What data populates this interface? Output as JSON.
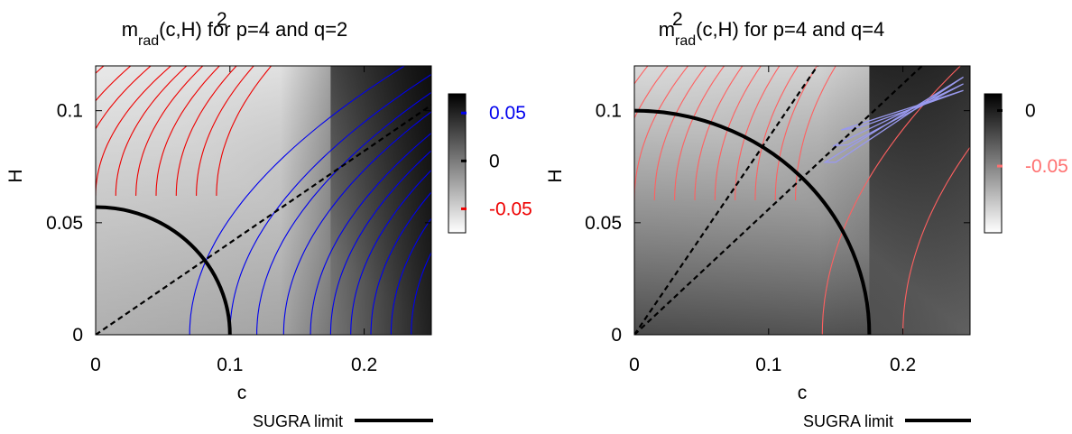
{
  "figure": {
    "legend_label": "SUGRA limit"
  },
  "chart_data": [
    {
      "type": "heatmap",
      "title": {
        "base": "m",
        "superscript": "2",
        "subscript": "rad",
        "rest": "(c,H) for p=4 and q=2"
      },
      "xlabel": "c",
      "ylabel": "H",
      "xlim": [
        0,
        0.25
      ],
      "ylim": [
        0,
        0.12
      ],
      "xticks": [
        {
          "v": 0,
          "label": "0"
        },
        {
          "v": 0.1,
          "label": "0.1"
        },
        {
          "v": 0.2,
          "label": "0.2"
        }
      ],
      "yticks": [
        {
          "v": 0,
          "label": "0"
        },
        {
          "v": 0.05,
          "label": "0.05"
        },
        {
          "v": 0.1,
          "label": "0.1"
        }
      ],
      "colorbar": {
        "range": [
          -0.075,
          0.07
        ],
        "ticks": [
          {
            "v": 0.05,
            "label": "0.05",
            "color": "#0000ee"
          },
          {
            "v": 0,
            "label": "0",
            "color": "#000000"
          },
          {
            "v": -0.05,
            "label": "-0.05",
            "color": "#ee0000"
          }
        ]
      },
      "background": {
        "corner_low_left": "#b0b0b0",
        "corner_high_left": "#f6f6f6",
        "corner_low_right": "#000000",
        "corner_high_right": "#444444"
      },
      "positive_contour_color": "#0000ee",
      "negative_contour_color": "#ee0000",
      "contours": {
        "negative_apex_c": [
          0.09,
          0.075,
          0.06,
          0.045,
          0.03,
          0.015,
          0.0,
          -0.015,
          -0.03,
          -0.05,
          -0.07,
          -0.09,
          -0.11,
          -0.13,
          -0.16,
          -0.19,
          -0.22,
          -0.26,
          -0.3,
          -0.35
        ],
        "positive_apex_c": [
          0.07,
          0.1,
          0.12,
          0.14,
          0.16,
          0.175,
          0.19,
          0.205,
          0.22,
          0.235,
          0.25
        ]
      },
      "zero_lines": [
        {
          "slope": 0.41
        }
      ],
      "sugra_limit": {
        "radius_c": 0.1,
        "radius_H": 0.057
      }
    },
    {
      "type": "heatmap",
      "title": {
        "base": "m",
        "superscript": "2",
        "subscript": "rad",
        "rest": "(c,H) for p=4 and q=4"
      },
      "xlabel": "c",
      "ylabel": "H",
      "xlim": [
        0,
        0.25
      ],
      "ylim": [
        0,
        0.12
      ],
      "xticks": [
        {
          "v": 0,
          "label": "0"
        },
        {
          "v": 0.1,
          "label": "0.1"
        },
        {
          "v": 0.2,
          "label": "0.2"
        }
      ],
      "yticks": [
        {
          "v": 0,
          "label": "0"
        },
        {
          "v": 0.05,
          "label": "0.05"
        },
        {
          "v": 0.1,
          "label": "0.1"
        }
      ],
      "colorbar": {
        "range": [
          -0.11,
          0.015
        ],
        "ticks": [
          {
            "v": 0,
            "label": "0",
            "color": "#000000"
          },
          {
            "v": -0.05,
            "label": "-0.05",
            "color": "#ff7070"
          }
        ]
      },
      "background": {
        "corner_low_left": "#4a4a4a",
        "corner_high_left": "#f0f0f0",
        "corner_low_right": "#707070",
        "corner_high_right": "#101010"
      },
      "positive_contour_color": "#9999ee",
      "negative_contour_color": "#ff6060",
      "contours": {
        "negative_apex_c": [
          0.12,
          0.105,
          0.09,
          0.075,
          0.06,
          0.045,
          0.03,
          0.015,
          0.0,
          -0.015,
          -0.03,
          -0.05,
          -0.07,
          -0.09,
          -0.12,
          -0.15,
          -0.18,
          -0.22,
          -0.26
        ],
        "lower_apex_c": [
          0.14,
          0.2
        ],
        "positive_wedge": [
          [
            0.142,
            0.077
          ],
          [
            0.245,
            0.115
          ],
          [
            0.15,
            0.077
          ]
        ]
      },
      "zero_lines": [
        {
          "slope": 0.56
        },
        {
          "slope": 0.88
        }
      ],
      "sugra_limit": {
        "radius_c": 0.175,
        "radius_H": 0.1
      }
    }
  ]
}
